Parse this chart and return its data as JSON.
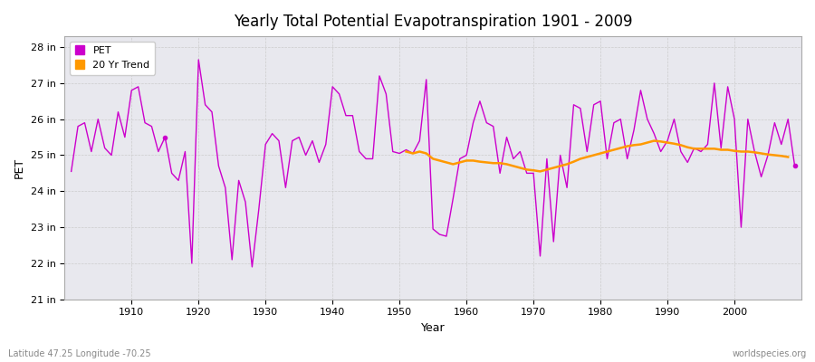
{
  "title": "Yearly Total Potential Evapotranspiration 1901 - 2009",
  "xlabel": "Year",
  "ylabel": "PET",
  "footnote_left": "Latitude 47.25 Longitude -70.25",
  "footnote_right": "worldspecies.org",
  "years": [
    1901,
    1902,
    1903,
    1904,
    1905,
    1906,
    1907,
    1908,
    1909,
    1910,
    1911,
    1912,
    1913,
    1914,
    1915,
    1916,
    1917,
    1918,
    1919,
    1920,
    1921,
    1922,
    1923,
    1924,
    1925,
    1926,
    1927,
    1928,
    1929,
    1930,
    1931,
    1932,
    1933,
    1934,
    1935,
    1936,
    1937,
    1938,
    1939,
    1940,
    1941,
    1942,
    1943,
    1944,
    1945,
    1946,
    1947,
    1948,
    1949,
    1950,
    1951,
    1952,
    1953,
    1954,
    1955,
    1956,
    1957,
    1958,
    1959,
    1960,
    1961,
    1962,
    1963,
    1964,
    1965,
    1966,
    1967,
    1968,
    1969,
    1970,
    1971,
    1972,
    1973,
    1974,
    1975,
    1976,
    1977,
    1978,
    1979,
    1980,
    1981,
    1982,
    1983,
    1984,
    1985,
    1986,
    1987,
    1988,
    1989,
    1990,
    1991,
    1992,
    1993,
    1994,
    1995,
    1996,
    1997,
    1998,
    1999,
    2000,
    2001,
    2002,
    2003,
    2004,
    2005,
    2006,
    2007,
    2008,
    2009
  ],
  "pet": [
    24.55,
    25.8,
    25.9,
    25.1,
    26.0,
    25.2,
    25.0,
    26.2,
    25.5,
    26.8,
    26.9,
    25.9,
    25.8,
    25.1,
    25.5,
    24.5,
    24.3,
    25.1,
    22.0,
    27.65,
    26.4,
    26.2,
    24.7,
    24.1,
    22.1,
    24.3,
    23.7,
    21.9,
    23.5,
    25.3,
    25.6,
    25.4,
    24.1,
    25.4,
    25.5,
    25.0,
    25.4,
    24.8,
    25.3,
    26.9,
    26.7,
    26.1,
    26.1,
    25.1,
    24.9,
    24.9,
    27.2,
    26.7,
    25.1,
    25.05,
    25.15,
    25.05,
    25.4,
    27.1,
    22.95,
    22.8,
    22.75,
    23.8,
    24.9,
    25.0,
    25.9,
    26.5,
    25.9,
    25.8,
    24.5,
    25.5,
    24.9,
    25.1,
    24.5,
    24.5,
    22.2,
    24.9,
    22.6,
    25.0,
    24.1,
    26.4,
    26.3,
    25.1,
    26.4,
    26.5,
    24.9,
    25.9,
    26.0,
    24.9,
    25.7,
    26.8,
    26.0,
    25.6,
    25.1,
    25.4,
    26.0,
    25.1,
    24.8,
    25.2,
    25.1,
    25.3,
    27.0,
    25.2,
    26.9,
    26.0,
    23.0,
    26.0,
    25.1,
    24.4,
    25.0,
    25.9,
    25.3,
    26.0,
    24.7
  ],
  "trend_years": [
    1951,
    1952,
    1953,
    1954,
    1955,
    1956,
    1957,
    1958,
    1959,
    1960,
    1961,
    1962,
    1963,
    1964,
    1965,
    1966,
    1967,
    1968,
    1969,
    1970,
    1971,
    1972,
    1973,
    1974,
    1975,
    1976,
    1977,
    1978,
    1979,
    1980,
    1981,
    1982,
    1983,
    1984,
    1985,
    1986,
    1987,
    1988,
    1989,
    1990,
    1991,
    1992,
    1993,
    1994,
    1995,
    1996,
    1997,
    1998,
    1999,
    2000,
    2001,
    2002,
    2003,
    2004,
    2005,
    2006,
    2007,
    2008
  ],
  "trend": [
    25.1,
    25.05,
    25.1,
    25.05,
    24.9,
    24.85,
    24.8,
    24.75,
    24.8,
    24.85,
    24.85,
    24.82,
    24.8,
    24.78,
    24.78,
    24.75,
    24.7,
    24.65,
    24.6,
    24.58,
    24.55,
    24.6,
    24.65,
    24.7,
    24.75,
    24.82,
    24.9,
    24.95,
    25.0,
    25.05,
    25.1,
    25.15,
    25.2,
    25.25,
    25.28,
    25.3,
    25.35,
    25.4,
    25.38,
    25.35,
    25.32,
    25.28,
    25.22,
    25.18,
    25.18,
    25.18,
    25.18,
    25.15,
    25.15,
    25.12,
    25.1,
    25.1,
    25.08,
    25.05,
    25.02,
    25.0,
    24.98,
    24.95
  ],
  "outlier_year": 1915,
  "outlier_pet": 25.5,
  "outlier_year2": 2009,
  "outlier_pet2": 24.7,
  "pet_color": "#cc00cc",
  "trend_color": "#ff9900",
  "fig_bg_color": "#ffffff",
  "plot_bg_color": "#e8e8ee",
  "grid_color": "#cccccc",
  "ylim": [
    21.0,
    28.3
  ],
  "yticks": [
    21,
    22,
    23,
    24,
    25,
    26,
    27,
    28
  ],
  "ytick_labels": [
    "21 in",
    "22 in",
    "23 in",
    "24 in",
    "25 in",
    "26 in",
    "27 in",
    "28 in"
  ],
  "xticks": [
    1910,
    1920,
    1930,
    1940,
    1950,
    1960,
    1970,
    1980,
    1990,
    2000
  ],
  "xlim": [
    1900,
    2010
  ]
}
